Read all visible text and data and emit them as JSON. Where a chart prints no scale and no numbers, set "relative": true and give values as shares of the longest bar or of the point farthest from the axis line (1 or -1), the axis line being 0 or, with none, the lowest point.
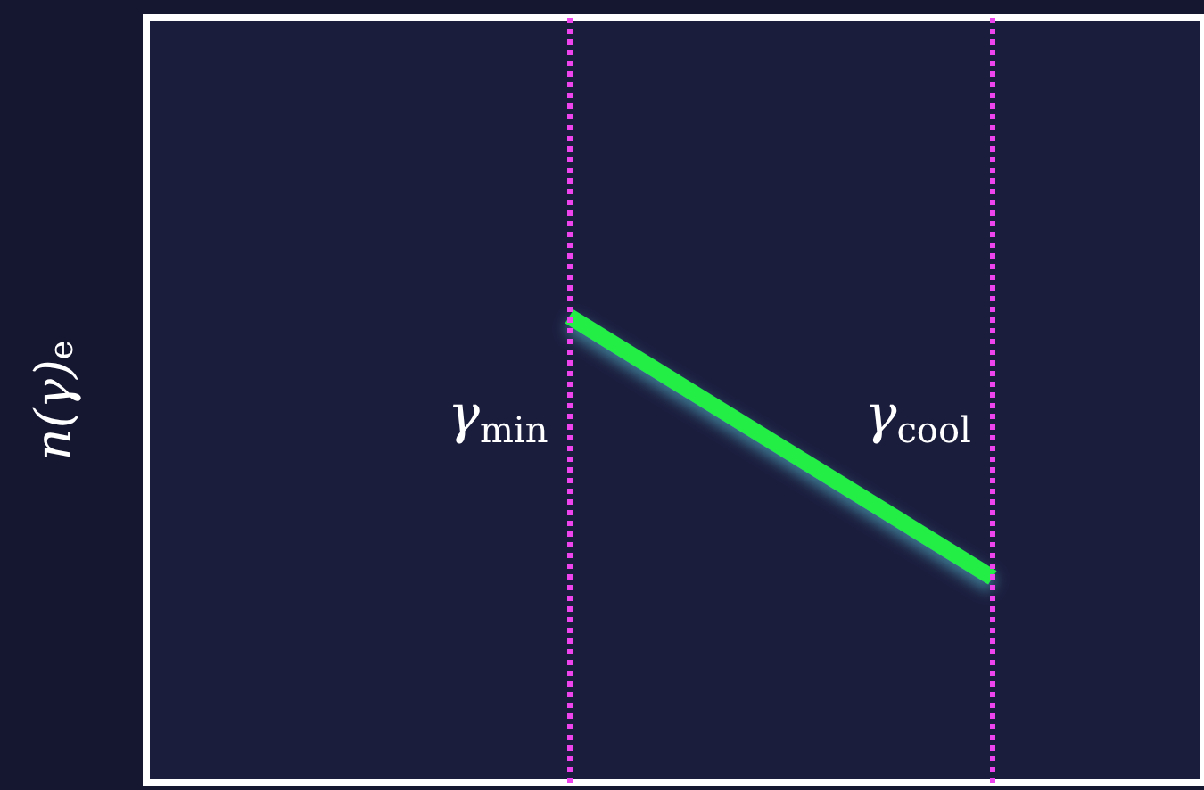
{
  "chart_data": {
    "type": "line",
    "relative": true,
    "ylabel": "n(γ)$_{e}$",
    "categories": [
      null,
      null,
      null,
      null,
      null,
      null
    ],
    "tick_labels": false,
    "grid": false,
    "marker": "none",
    "line_style": "solid",
    "series": [
      {
        "color": "#22ee44",
        "values": [
          null,
          null,
          1,
          null,
          0.44,
          null
        ]
      }
    ],
    "ref_lines": [
      {
        "axis": "x",
        "label": "γ$_{min}$",
        "color": "#ee44ee",
        "line_style": "dotted"
      },
      {
        "axis": "x",
        "label": "γ$_{cool}$",
        "color": "#ee44ee",
        "line_style": "dotted"
      }
    ]
  }
}
